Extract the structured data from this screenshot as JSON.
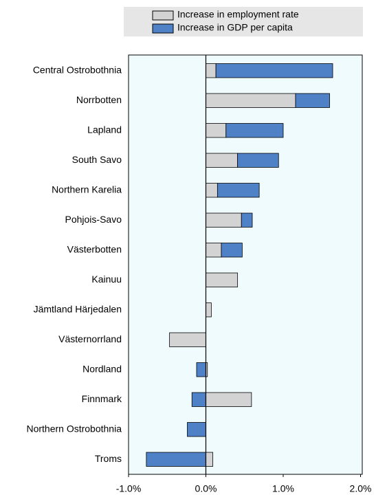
{
  "chart_data": {
    "type": "stacked-bar-horizontal",
    "categories": [
      "Central Ostrobothnia",
      "Norrbotten",
      "Lapland",
      "South Savo",
      "Northern Karelia",
      "Pohjois-Savo",
      "Västerbotten",
      "Kainuu",
      "Jämtland Härjedalen",
      "Västernorrland",
      "Nordland",
      "Finnmark",
      "Northern Ostrobothnia",
      "Troms"
    ],
    "series": [
      {
        "name": "Increase in employment rate",
        "color": "#d3d3d3",
        "values": [
          0.13,
          1.16,
          0.26,
          0.41,
          0.15,
          0.46,
          0.2,
          0.41,
          0.07,
          -0.47,
          0.02,
          0.59,
          0,
          0.09
        ]
      },
      {
        "name": "Increase in GDP per capita",
        "color": "#4f81c6",
        "values": [
          1.51,
          0.44,
          0.74,
          0.53,
          0.54,
          0.14,
          0.27,
          0,
          0,
          0,
          -0.12,
          -0.18,
          -0.24,
          -0.77
        ]
      }
    ],
    "xlim": [
      -1,
      2
    ],
    "xticks": [
      {
        "value": -1,
        "label": "-1.0%"
      },
      {
        "value": 0,
        "label": "0.0%"
      },
      {
        "value": 1,
        "label": "1.0%"
      },
      {
        "value": 2,
        "label": "2.0%"
      }
    ],
    "legend": "top"
  }
}
